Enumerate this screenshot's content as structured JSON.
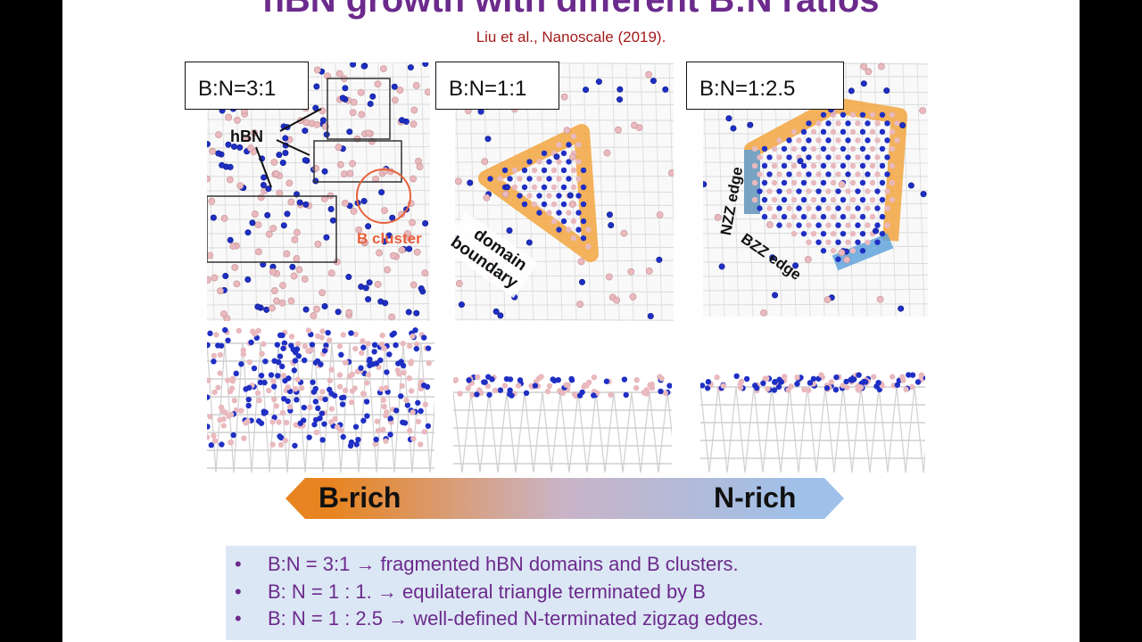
{
  "slide": {
    "title": "hBN growth with different B:N ratios",
    "citation": "Liu et al., Nanoscale (2019)."
  },
  "panels": [
    {
      "label": "B:N=3:1",
      "annotations": {
        "hbn": "hBN",
        "cluster": "B cluster"
      }
    },
    {
      "label": "B:N=1:1",
      "annotations": {
        "boundary_line1": "domain",
        "boundary_line2": "boundary"
      }
    },
    {
      "label": "B:N=1:2.5",
      "annotations": {
        "nzz": "NZZ edge",
        "bzz": "BZZ edge"
      }
    }
  ],
  "arrow": {
    "left_label": "B-rich",
    "right_label": "N-rich",
    "colors": {
      "left": "#e8841f",
      "right": "#9fc0e8"
    }
  },
  "bullets": [
    {
      "marker": "•",
      "text": "B:N = 3:1 → fragmented hBN domains and B clusters."
    },
    {
      "marker": "•",
      "text": "B: N = 1 : 1. → equilateral triangle terminated by B"
    },
    {
      "marker": "•",
      "text": "B: N = 1 : 2.5  → well-defined N-terminated zigzag edges."
    }
  ],
  "colors": {
    "title": "#6b2a8c",
    "citation": "#a31a1a",
    "boron": "#e9b9bd",
    "nitrogen": "#1f2fc4",
    "bullet_bg": "#dce7f5",
    "orange_highlight": "#f2a640",
    "blue_highlight": "#5aa0dc"
  }
}
